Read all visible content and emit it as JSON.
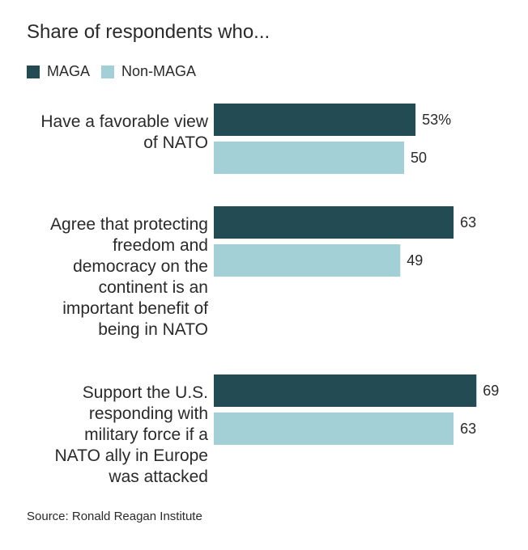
{
  "chart_data": {
    "type": "bar",
    "orientation": "horizontal",
    "title": "Share of respondents who...",
    "categories": [
      [
        "Have a favorable view",
        "of NATO"
      ],
      [
        "Agree that protecting",
        "freedom and",
        "democracy on the",
        "continent is an",
        "important benefit of",
        "being in NATO"
      ],
      [
        "Support the U.S.",
        "responding with",
        "military force if a",
        "NATO ally in Europe",
        "was attacked"
      ]
    ],
    "series": [
      {
        "name": "MAGA",
        "color": "#234b53",
        "values": [
          53,
          63,
          69
        ],
        "labels": [
          "53%",
          "63",
          "69"
        ]
      },
      {
        "name": "Non-MAGA",
        "color": "#a3cfd6",
        "values": [
          50,
          49,
          63
        ],
        "labels": [
          "50",
          "49",
          "63"
        ]
      }
    ],
    "xlim": [
      0,
      69
    ],
    "legend_position": "top-left",
    "grid": false,
    "source": "Source: Ronald Reagan Institute"
  }
}
